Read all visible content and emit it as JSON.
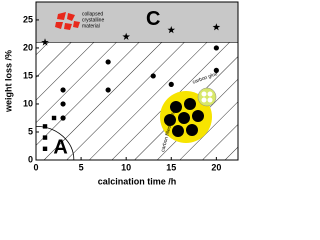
{
  "chart_data": {
    "type": "scatter",
    "xlabel": "calcination time /h",
    "ylabel": "weight loss /%",
    "xlim": [
      0,
      22.4
    ],
    "ylim": [
      0,
      28.2
    ],
    "xticks": [
      0,
      5,
      10,
      15,
      20
    ],
    "yticks": [
      0,
      5,
      10,
      15,
      20,
      25
    ],
    "series": [
      {
        "marker": "square",
        "color": "#000000",
        "x": [
          1,
          1,
          1,
          2
        ],
        "values": [
          2,
          4,
          6,
          7.5
        ]
      },
      {
        "marker": "circle",
        "color": "#000000",
        "x": [
          3,
          3,
          3,
          8,
          8,
          13,
          15,
          20,
          20
        ],
        "values": [
          12.5,
          10,
          7.5,
          17.5,
          12.5,
          15,
          13.5,
          20,
          16
        ]
      },
      {
        "marker": "star",
        "color": "#000000",
        "x": [
          1,
          10,
          15,
          20
        ],
        "values": [
          21,
          22,
          23.2,
          23.7
        ]
      }
    ],
    "regions": [
      {
        "label": "C",
        "ymin": 21,
        "color": "#c8c8c8"
      },
      {
        "label": "A",
        "x_radius": 4.2,
        "y_radius": 6
      }
    ],
    "annotations": {
      "collapsed": [
        "collapsed",
        "crystalline",
        "material"
      ],
      "pores": "carbon filled pores",
      "glue": "carbon glue"
    }
  }
}
